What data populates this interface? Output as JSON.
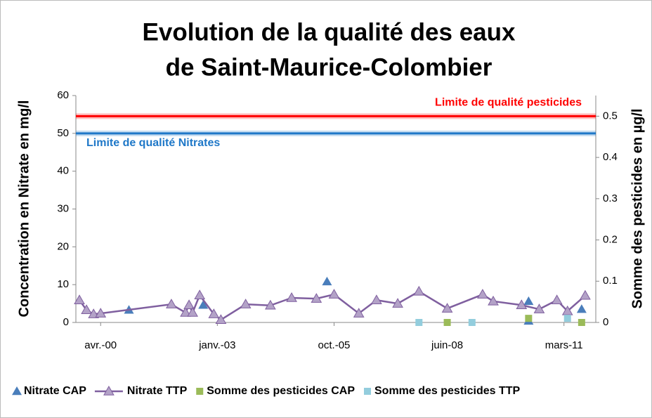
{
  "chart_data": {
    "type": "scatter",
    "title": [
      "Evolution de la qualité des  eaux",
      "de  Saint-Maurice-Colombier"
    ],
    "y_label": "Concentration en Nitrate en mg/l",
    "y2_label": "Somme des pesticides en µg/l",
    "xlim": [
      "1999-09",
      "2011-12"
    ],
    "xticks": [
      {
        "value": "2000-04",
        "label": "avr.-00"
      },
      {
        "value": "2003-01",
        "label": "janv.-03"
      },
      {
        "value": "2005-10",
        "label": "oct.-05"
      },
      {
        "value": "2008-06",
        "label": "juin-08"
      },
      {
        "value": "2011-03",
        "label": "mars-11"
      }
    ],
    "ylim": [
      0,
      60
    ],
    "yticks": [
      0,
      10,
      20,
      30,
      40,
      50,
      60
    ],
    "y2lim": [
      0,
      0.55
    ],
    "y2ticks": [
      0,
      0.1,
      0.2,
      0.3,
      0.4,
      0.5
    ],
    "legend": "bottom",
    "reference_lines": [
      {
        "value": 0.5,
        "axis": "y2",
        "label": "Limite de qualité pesticides",
        "color": "#ff0000"
      },
      {
        "value": 50,
        "axis": "y",
        "label": "Limite de qualité Nitrates",
        "color": "#1f78c8"
      }
    ],
    "series": [
      {
        "name": "Nitrate CAP",
        "color": "#4a7ebb",
        "marker": "triangle",
        "line": false,
        "axis": "y",
        "x": [
          "2000-12",
          "2002-09",
          "2005-08",
          "2008-06",
          "2010-05",
          "2010-05",
          "2011-08"
        ],
        "values": [
          3.3,
          4.6,
          10.8,
          3.7,
          5.6,
          0.4,
          3.5
        ]
      },
      {
        "name": "Nitrate TTP",
        "color": "#7f5f9f",
        "marker_color": "#b3a2c7",
        "marker": "triangle",
        "line": true,
        "axis": "y",
        "x": [
          "1999-10",
          "1999-12",
          "2000-02",
          "2000-04",
          "2001-12",
          "2002-04",
          "2002-05",
          "2002-06",
          "2002-08",
          "2002-12",
          "2003-02",
          "2003-09",
          "2004-04",
          "2004-10",
          "2005-05",
          "2005-10",
          "2006-05",
          "2006-10",
          "2007-04",
          "2007-10",
          "2008-06",
          "2009-04",
          "2009-07",
          "2010-03",
          "2010-08",
          "2011-01",
          "2011-04",
          "2011-09"
        ],
        "values": [
          5.9,
          3.3,
          2.2,
          2.4,
          4.8,
          2.6,
          4.6,
          2.6,
          7.2,
          2.2,
          0.7,
          4.8,
          4.5,
          6.5,
          6.3,
          7.4,
          2.4,
          5.9,
          5.0,
          8.2,
          3.7,
          7.4,
          5.6,
          4.6,
          3.5,
          5.9,
          3.0,
          7.1
        ]
      },
      {
        "name": "Somme des pesticides CAP",
        "color": "#9bbb59",
        "marker": "square",
        "line": false,
        "axis": "y2",
        "x": [
          "2008-06",
          "2010-05",
          "2011-08"
        ],
        "values": [
          0,
          0.01,
          0
        ]
      },
      {
        "name": "Somme des pesticides TTP",
        "color": "#93cddd",
        "marker": "square",
        "line": false,
        "axis": "y2",
        "x": [
          "2007-10",
          "2009-01",
          "2011-04"
        ],
        "values": [
          0,
          0,
          0.01
        ]
      }
    ]
  }
}
